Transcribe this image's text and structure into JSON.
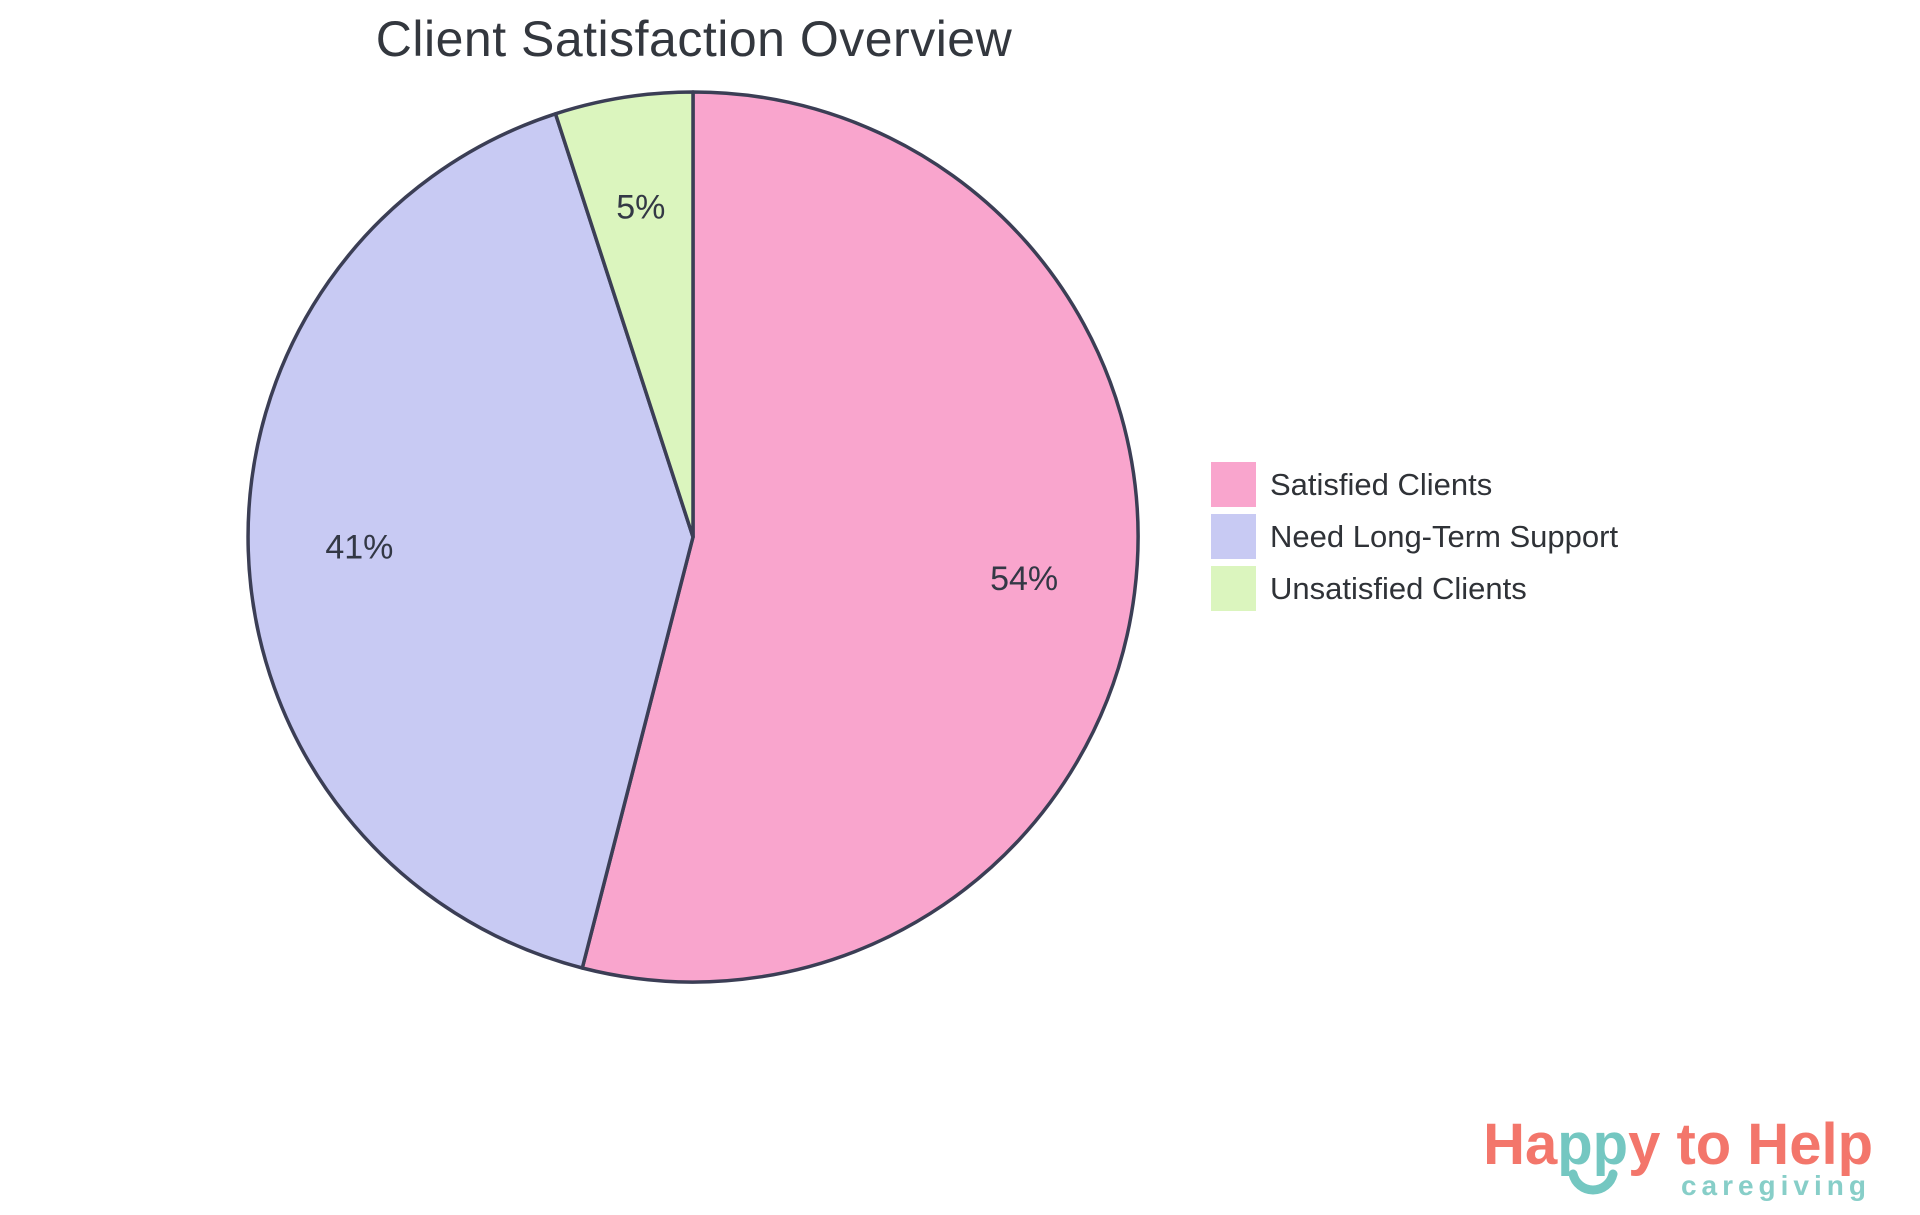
{
  "title": "Client Satisfaction Overview",
  "chart_data": {
    "type": "pie",
    "title": "Client Satisfaction Overview",
    "start_angle": "12 o'clock, clockwise",
    "stroke_color": "#3B3E55",
    "label_color": "#333845",
    "legend_position": "right",
    "slices": [
      {
        "label": "Satisfied Clients",
        "value": 54,
        "display": "54%",
        "color": "#F9A5CD"
      },
      {
        "label": "Need Long-Term Support",
        "value": 41,
        "display": "41%",
        "color": "#C8CAF3"
      },
      {
        "label": "Unsatisfied Clients",
        "value": 5,
        "display": "5%",
        "color": "#DBF5BE"
      }
    ]
  },
  "logo": {
    "text_coral_1": "Ha",
    "text_teal": "pp",
    "text_coral_2": "y to Help",
    "tagline": "caregiving",
    "coral": "#F3766B",
    "teal": "#74C7C1",
    "tagline_color": "#87CEC8"
  }
}
